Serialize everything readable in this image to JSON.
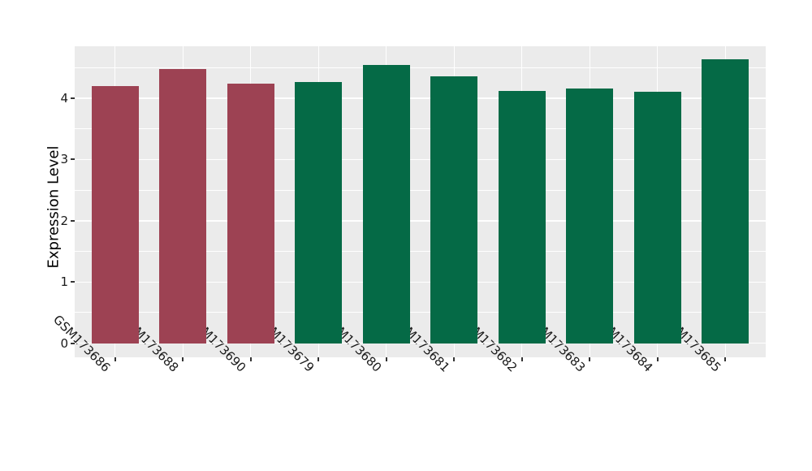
{
  "chart_data": {
    "type": "bar",
    "title": "",
    "xlabel": "",
    "ylabel": "Expression Level",
    "categories": [
      "GSM173686",
      "GSM173688",
      "GSM173690",
      "GSM173679",
      "GSM173680",
      "GSM173681",
      "GSM173682",
      "GSM173683",
      "GSM173684",
      "GSM173685"
    ],
    "values": [
      4.2,
      4.48,
      4.24,
      4.26,
      4.54,
      4.36,
      4.12,
      4.16,
      4.11,
      4.64
    ],
    "bar_colors": [
      "#9D4253",
      "#9D4253",
      "#9D4253",
      "#056A46",
      "#056A46",
      "#056A46",
      "#056A46",
      "#056A46",
      "#056A46",
      "#056A46"
    ],
    "yticks": [
      0,
      1,
      2,
      3,
      4
    ],
    "ylim": [
      -0.23,
      4.85
    ],
    "grid": "on",
    "gridline_interval": 0.5,
    "legend": "none",
    "colors": {
      "plot_background": "#EBEBEB",
      "figure_background": "#FFFFFF",
      "gridline": "#FFFFFF",
      "tick_text": "#1a1a1a",
      "tick_mark": "#333333",
      "group_left_bars": "#9D4253",
      "group_right_bars": "#056A46"
    }
  }
}
